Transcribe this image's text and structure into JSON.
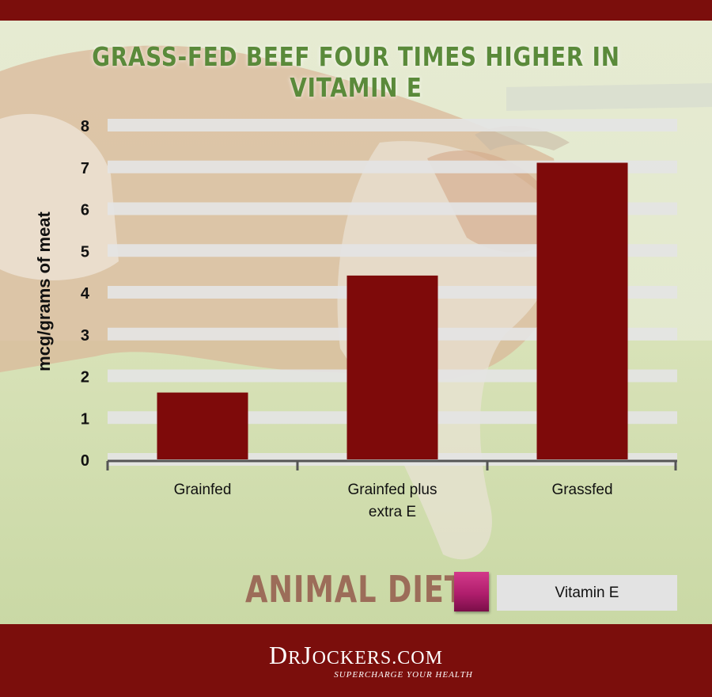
{
  "header": {
    "title": "GRASS-FED BEEF FOUR TIMES HIGHER IN VITAMIN E"
  },
  "chart_data": {
    "type": "bar",
    "title": "GRASS-FED BEEF FOUR TIMES HIGHER IN VITAMIN E",
    "xlabel": "",
    "ylabel": "mcg/grams of meat",
    "categories": [
      "Grainfed",
      "Grainfed plus extra E",
      "Grassfed"
    ],
    "category_lines": [
      [
        "Grainfed"
      ],
      [
        "Grainfed plus",
        "extra E"
      ],
      [
        "Grassfed"
      ]
    ],
    "series": [
      {
        "name": "Vitamin E",
        "values": [
          1.6,
          4.4,
          7.1
        ]
      }
    ],
    "ylim": [
      0,
      8
    ],
    "yticks": [
      "0",
      "1",
      "2",
      "3",
      "4",
      "5",
      "6",
      "7",
      "8"
    ],
    "grid": true,
    "legend_position": "bottom-right",
    "bar_color": "#7e0a0a"
  },
  "legend": {
    "heading": "ANIMAL DIET",
    "label": "Vitamin E",
    "swatch_color": "#b01e6d"
  },
  "colors": {
    "brand_bar": "#7b0e0c",
    "title_green": "#5a8a3a",
    "legend_heading": "#9c6d59"
  },
  "footer": {
    "logo_prefix": "D",
    "logo_r": "R",
    "logo_name": "J",
    "logo_ockers": "OCKERS",
    "logo_domain": ".COM",
    "tagline": "SUPERCHARGE YOUR HEALTH"
  }
}
